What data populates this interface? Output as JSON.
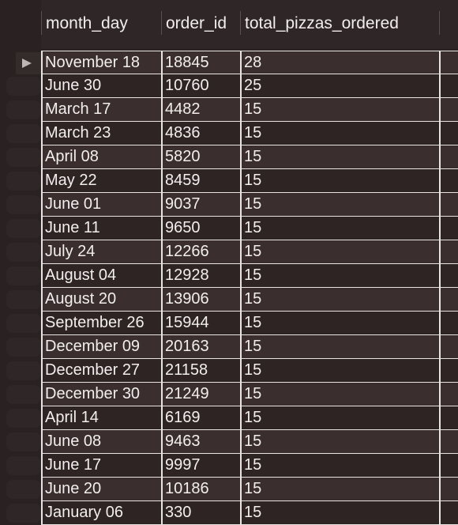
{
  "table": {
    "columns": [
      "month_day",
      "order_id",
      "total_pizzas_ordered"
    ],
    "rows": [
      [
        "November 18",
        "18845",
        "28"
      ],
      [
        "June 30",
        "10760",
        "25"
      ],
      [
        "March 17",
        "4482",
        "15"
      ],
      [
        "March 23",
        "4836",
        "15"
      ],
      [
        "April 08",
        "5820",
        "15"
      ],
      [
        "May 22",
        "8459",
        "15"
      ],
      [
        "June 01",
        "9037",
        "15"
      ],
      [
        "June 11",
        "9650",
        "15"
      ],
      [
        "July 24",
        "12266",
        "15"
      ],
      [
        "August 04",
        "12928",
        "15"
      ],
      [
        "August 20",
        "13906",
        "15"
      ],
      [
        "September 26",
        "15944",
        "15"
      ],
      [
        "December 09",
        "20163",
        "15"
      ],
      [
        "December 27",
        "21158",
        "15"
      ],
      [
        "December 30",
        "21249",
        "15"
      ],
      [
        "April 14",
        "6169",
        "15"
      ],
      [
        "June 08",
        "9463",
        "15"
      ],
      [
        "June 17",
        "9997",
        "15"
      ],
      [
        "June 20",
        "10186",
        "15"
      ],
      [
        "January 06",
        "330",
        "15"
      ]
    ],
    "selected_row_index": 0
  },
  "icons": {
    "row_pointer": "triangle-right-icon"
  },
  "colors": {
    "background": "#2a2222",
    "row_odd": "#3a2e2e",
    "row_even": "#2e2424",
    "grid_lines": "#e8e4e4",
    "text": "#f2eeee"
  }
}
